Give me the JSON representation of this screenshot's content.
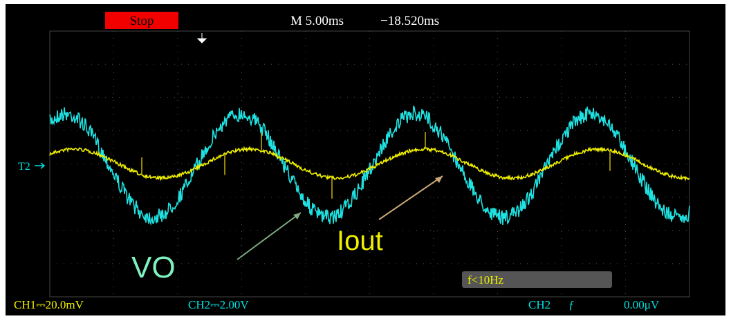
{
  "status": "Stop",
  "timebase": "M 5.00ms",
  "trigger_position": "−18.520ms",
  "channel_marker": "T2",
  "annotations": {
    "vo": "VO",
    "iout": "Iout"
  },
  "footer": {
    "ch1": "CH1⎓20.0mV",
    "ch2": "CH2⎓2.00V",
    "trigger_source": "CH2",
    "trigger_slope": "ƒ",
    "trigger_level": "0.00μV"
  },
  "frequency": "f<10Hz"
}
